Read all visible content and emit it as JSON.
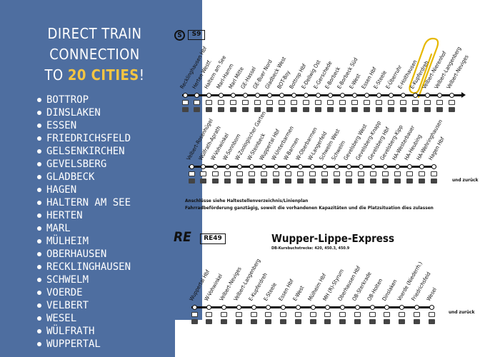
{
  "colors": {
    "panel": "#4e6ea0",
    "highlight": "#f4c542",
    "ink": "#111111"
  },
  "headline": {
    "line1": "DIRECT TRAIN",
    "line2": "CONNECTION",
    "line3_prefix": "TO ",
    "line3_highlight": "20 CITIES",
    "line3_suffix": "!"
  },
  "cities": [
    "BOTTROP",
    "DINSLAKEN",
    "ESSEN",
    "FRIEDRICHSFELD",
    "GELSENKIRCHEN",
    "GEVELSBERG",
    "GLADBECK",
    "HAGEN",
    "HALTERN AM SEE",
    "HERTEN",
    "MARL",
    "MÜLHEIM",
    "OBERHAUSEN",
    "RECKLINGHAUSEN",
    "SCHWELM",
    "VOERDE",
    "VELBERT",
    "WESEL",
    "WÜLFRATH",
    "WUPPERTAL"
  ],
  "s9": {
    "logo": "S",
    "badge": "S9",
    "row1": [
      "Recklinghausen Hbf",
      "Herten Westf.",
      "Haltern am See",
      "Marl-Hamm",
      "Marl Mitte",
      "GE-Hassel",
      "GE-Buer Nord",
      "Gladbeck West",
      "BOT-Boy",
      "Bottrop Hbf",
      "E-Dellwig Ost",
      "E-Gerschede",
      "E-Borbeck",
      "E-Borbeck Süd",
      "E-West",
      "Essen Hbf",
      "E-Steele",
      "E-Überruhr",
      "E-Holthausen",
      "E-Kupferdreh",
      "Velbert-Nierenhof",
      "Velbert-Langenberg",
      "Velbert-Neviges"
    ],
    "row2": [
      "Velbert-Rosenhügel",
      "Wülfrath-Aprath",
      "W-Vohwinkel",
      "W-Sonnborn",
      "W-Zoologischer Garten",
      "W-Steinbeck",
      "Wuppertal Hbf",
      "W-Unterbarmen",
      "W-Barmen",
      "W-Oberbarmen",
      "W-Langerfeld",
      "Schwelm West",
      "Schwelm",
      "Gevelsberg West",
      "Gevelsberg-Knapp",
      "Gevelsberg Hbf",
      "Gevelsberg-Kipp",
      "HA-Westerbauer",
      "HA-Heubing",
      "HA-Wehringhausen",
      "Hagen Hbf"
    ],
    "return_note": "und zurück",
    "note1": "Anschlüsse siehe Haltestellenverzeichnis/Linienplan",
    "note2": "Fahrradbeförderung ganztägig, soweit die vorhandenen Kapazitäten und die Platzsituation dies zulassen"
  },
  "re49": {
    "mark": "RE",
    "badge": "RE49",
    "title": "Wupper-Lippe-Express",
    "kbs": "DB-Kursbuchstrecke: 420, 450.3, 450.9",
    "stations": [
      "Wuppertal Hbf",
      "W-Vohwinkel",
      "Velbert-Neviges",
      "Velbert-Langenberg",
      "E-Kupferdreh",
      "E-Steele",
      "Essen Hbf",
      "E-West",
      "Mülheim Hbf",
      "MH (R)-Styrum",
      "Oberhausen Hbf",
      "OB-Sterkrade",
      "OB-Holten",
      "Dinslaken",
      "Voerde (Niederrh.)",
      "Friedrichsfeld",
      "Wesel"
    ],
    "return_note": "und zurück"
  }
}
